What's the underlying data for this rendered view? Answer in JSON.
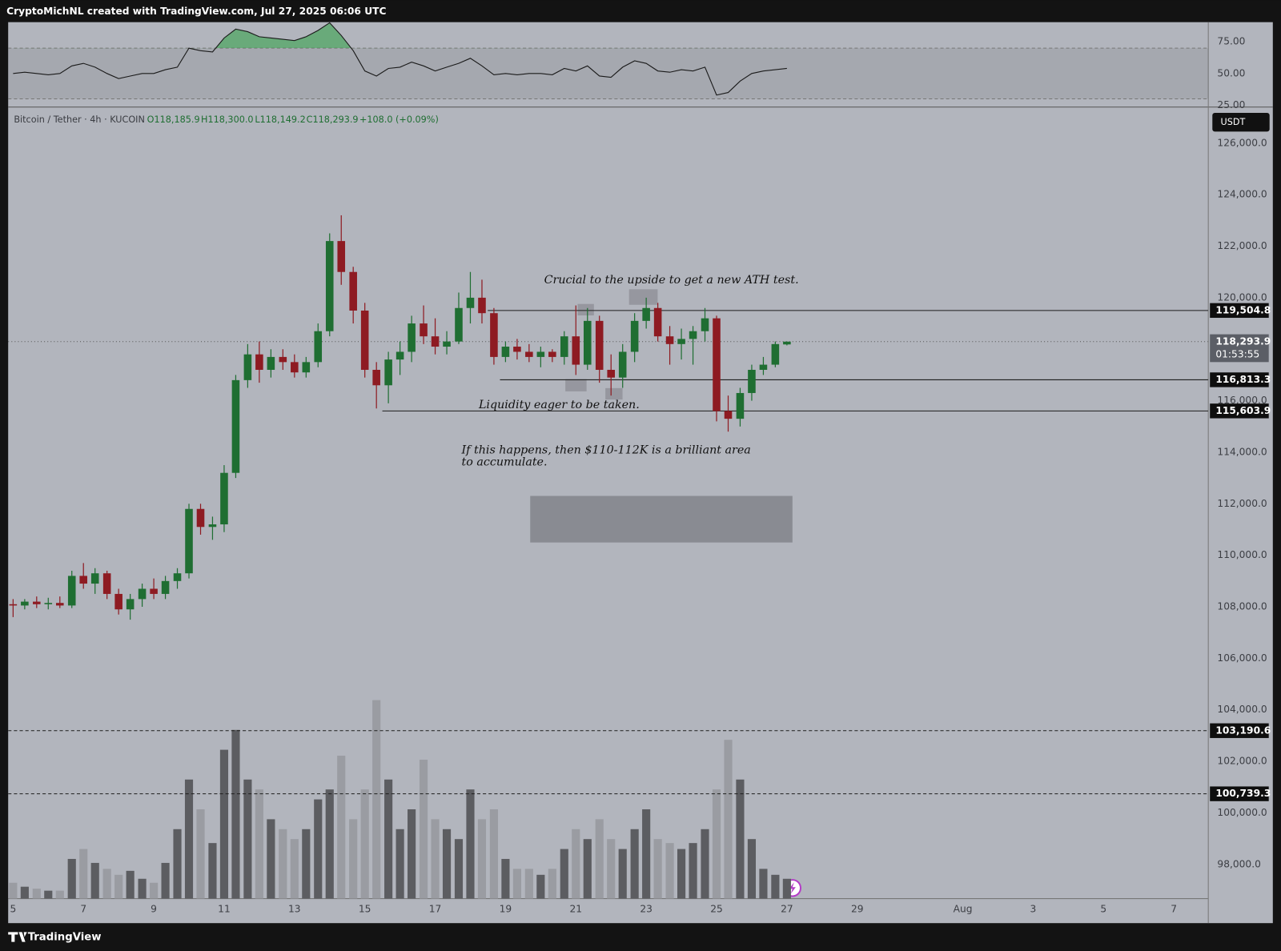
{
  "header": "CryptoMichNL created with TradingView.com, Jul 27, 2025 06:06 UTC",
  "footer": "TradingView",
  "chart_data": {
    "type": "candlestick",
    "legend": {
      "symbol": "Bitcoin / Tether · 4h · KUCOIN",
      "open": "O118,185.9",
      "high": "H118,300.0",
      "low": "L118,149.2",
      "close": "C118,293.9",
      "change": "+108.0 (+0.09%)"
    },
    "currency": "USDT",
    "up_color": "#1f6e32",
    "down_color": "#8e1b22",
    "volume_up_color": "#5c5d61",
    "volume_down_color": "#9a9ca2",
    "x": [
      5,
      5.33,
      5.67,
      6,
      6.33,
      6.67,
      7,
      7.33,
      7.67,
      8,
      8.33,
      8.67,
      9,
      9.33,
      9.67,
      10,
      10.33,
      10.67,
      11,
      11.33,
      11.67,
      12,
      12.33,
      12.67,
      13,
      13.33,
      13.67,
      14,
      14.33,
      14.67,
      15,
      15.33,
      15.67,
      16,
      16.33,
      16.67,
      17,
      17.33,
      17.67,
      18,
      18.33,
      18.67,
      19,
      19.33,
      19.67,
      20,
      20.33,
      20.67,
      21,
      21.33,
      21.67,
      22,
      22.33,
      22.67,
      23,
      23.33,
      23.67,
      24,
      24.33,
      24.67,
      25,
      25.33,
      25.67,
      26,
      26.33,
      26.67,
      27
    ],
    "ohlc": [
      [
        108100,
        108300,
        107600,
        108050
      ],
      [
        108050,
        108300,
        107900,
        108200
      ],
      [
        108200,
        108400,
        107950,
        108100
      ],
      [
        108100,
        108350,
        107900,
        108150
      ],
      [
        108150,
        108400,
        107950,
        108050
      ],
      [
        108050,
        109400,
        107950,
        109200
      ],
      [
        109200,
        109700,
        108700,
        108900
      ],
      [
        108900,
        109500,
        108500,
        109300
      ],
      [
        109300,
        109400,
        108300,
        108500
      ],
      [
        108500,
        108700,
        107700,
        107900
      ],
      [
        107900,
        108500,
        107500,
        108300
      ],
      [
        108300,
        108900,
        108000,
        108700
      ],
      [
        108700,
        109100,
        108300,
        108500
      ],
      [
        108500,
        109200,
        108300,
        109000
      ],
      [
        109000,
        109500,
        108700,
        109300
      ],
      [
        109300,
        112000,
        109100,
        111800
      ],
      [
        111800,
        112000,
        110800,
        111100
      ],
      [
        111100,
        111500,
        110600,
        111200
      ],
      [
        111200,
        113500,
        110900,
        113200
      ],
      [
        113200,
        117000,
        113000,
        116800
      ],
      [
        116800,
        118200,
        116500,
        117800
      ],
      [
        117800,
        118300,
        116700,
        117200
      ],
      [
        117200,
        118000,
        116900,
        117700
      ],
      [
        117700,
        118000,
        117200,
        117500
      ],
      [
        117500,
        117800,
        116900,
        117100
      ],
      [
        117100,
        117700,
        116900,
        117500
      ],
      [
        117500,
        119000,
        117300,
        118700
      ],
      [
        118700,
        122500,
        118500,
        122200
      ],
      [
        122200,
        123200,
        120500,
        121000
      ],
      [
        121000,
        121200,
        119000,
        119500
      ],
      [
        119500,
        119800,
        116900,
        117200
      ],
      [
        117200,
        117500,
        115700,
        116600
      ],
      [
        116600,
        117900,
        115900,
        117600
      ],
      [
        117600,
        118300,
        117000,
        117900
      ],
      [
        117900,
        119300,
        117500,
        119000
      ],
      [
        119000,
        119700,
        118200,
        118500
      ],
      [
        118500,
        119200,
        117800,
        118100
      ],
      [
        118100,
        118700,
        117800,
        118300
      ],
      [
        118300,
        120200,
        118200,
        119600
      ],
      [
        119600,
        121000,
        119000,
        120000
      ],
      [
        120000,
        120700,
        119000,
        119400
      ],
      [
        119400,
        119600,
        117400,
        117700
      ],
      [
        117700,
        118300,
        117500,
        118100
      ],
      [
        118100,
        118400,
        117600,
        117900
      ],
      [
        117900,
        118200,
        117500,
        117700
      ],
      [
        117700,
        118100,
        117300,
        117900
      ],
      [
        117900,
        118000,
        117500,
        117700
      ],
      [
        117700,
        118700,
        117400,
        118500
      ],
      [
        118500,
        119700,
        117000,
        117400
      ],
      [
        117400,
        119600,
        117200,
        119100
      ],
      [
        119100,
        119300,
        116700,
        117200
      ],
      [
        117200,
        117800,
        116200,
        116900
      ],
      [
        116900,
        118200,
        116500,
        117900
      ],
      [
        117900,
        119400,
        117500,
        119100
      ],
      [
        119100,
        120000,
        118800,
        119600
      ],
      [
        119600,
        119800,
        118300,
        118500
      ],
      [
        118500,
        118900,
        117400,
        118200
      ],
      [
        118200,
        118800,
        117600,
        118400
      ],
      [
        118400,
        118900,
        117400,
        118700
      ],
      [
        118700,
        119600,
        118300,
        119200
      ],
      [
        119200,
        119300,
        115200,
        115600
      ],
      [
        115600,
        116200,
        114800,
        115300
      ],
      [
        115300,
        116500,
        115000,
        116300
      ],
      [
        116300,
        117400,
        116000,
        117200
      ],
      [
        117200,
        117700,
        117000,
        117400
      ],
      [
        117400,
        118300,
        117300,
        118200
      ],
      [
        118185.9,
        118300,
        118149.2,
        118293.9
      ]
    ],
    "volume": [
      8,
      6,
      5,
      4,
      4,
      20,
      25,
      18,
      15,
      12,
      14,
      10,
      8,
      18,
      35,
      60,
      45,
      28,
      75,
      85,
      60,
      55,
      40,
      35,
      30,
      35,
      50,
      55,
      72,
      40,
      55,
      100,
      60,
      35,
      45,
      70,
      40,
      35,
      30,
      55,
      40,
      45,
      20,
      15,
      15,
      12,
      15,
      25,
      35,
      30,
      40,
      30,
      25,
      35,
      45,
      30,
      28,
      25,
      28,
      35,
      55,
      80,
      60,
      30,
      15,
      12,
      10
    ],
    "xlim": [
      4.86,
      38.98
    ],
    "xticks": [
      5,
      7,
      9,
      11,
      13,
      15,
      17,
      19,
      21,
      23,
      25,
      27,
      29,
      {
        "value": 32,
        "label": "Aug"
      },
      {
        "value": 34,
        "label": "3"
      },
      {
        "value": 36,
        "label": "5"
      },
      {
        "value": 38,
        "label": "7"
      }
    ],
    "ylim": [
      96670,
      127400
    ],
    "yticks": [
      {
        "value": 98000,
        "label": "98,000.0"
      },
      {
        "value": 100000,
        "label": "100,000.0"
      },
      {
        "value": 102000,
        "label": "102,000.0"
      },
      {
        "value": 104000,
        "label": "104,000.0"
      },
      {
        "value": 106000,
        "label": "106,000.0"
      },
      {
        "value": 108000,
        "label": "108,000.0"
      },
      {
        "value": 110000,
        "label": "110,000.0"
      },
      {
        "value": 112000,
        "label": "112,000.0"
      },
      {
        "value": 114000,
        "label": "114,000.0"
      },
      {
        "value": 116000,
        "label": "116,000.0"
      },
      {
        "value": 118000,
        "label": "118,000.0"
      },
      {
        "value": 120000,
        "label": "120,000.0"
      },
      {
        "value": 122000,
        "label": "122,000.0"
      },
      {
        "value": 124000,
        "label": "124,000.0"
      },
      {
        "value": 126000,
        "label": "126,000.0"
      }
    ],
    "last": {
      "value": 118293.9,
      "label": "118,293.9",
      "countdown": "01:53:55"
    },
    "levels": [
      {
        "value": 119504.8,
        "label": "119,504.8"
      },
      {
        "value": 116813.3,
        "label": "116,813.3"
      },
      {
        "value": 115603.9,
        "label": "115,603.9"
      },
      {
        "value": 103190.6,
        "label": "103,190.6"
      },
      {
        "value": 100739.3,
        "label": "100,739.3"
      }
    ],
    "annotations": [
      "Crucial to the upside to get a new ATH test.",
      "Liquidity eager to be taken.",
      "If this happens, then $110-112K is a brilliant area",
      "to accumulate."
    ],
    "rsi": {
      "color": "#1a1a1a",
      "band": [
        30,
        70
      ],
      "ylim": [
        23.5,
        90.5
      ],
      "yticks": [
        {
          "value": 75,
          "label": "75.00"
        },
        {
          "value": 50,
          "label": "50.00"
        },
        {
          "value": 25,
          "label": "25.00"
        }
      ],
      "values": [
        50,
        51,
        50,
        49,
        50,
        56,
        58,
        55,
        50,
        46,
        48,
        50,
        50,
        53,
        55,
        70,
        68,
        67,
        78,
        85,
        83,
        79,
        78,
        77,
        76,
        79,
        84,
        90,
        80,
        68,
        52,
        48,
        54,
        55,
        59,
        56,
        52,
        55,
        58,
        62,
        56,
        49,
        50,
        49,
        50,
        50,
        49,
        54,
        52,
        56,
        48,
        47,
        55,
        60,
        58,
        52,
        51,
        53,
        52,
        55,
        33,
        35,
        44,
        50,
        52,
        53,
        54
      ]
    }
  }
}
